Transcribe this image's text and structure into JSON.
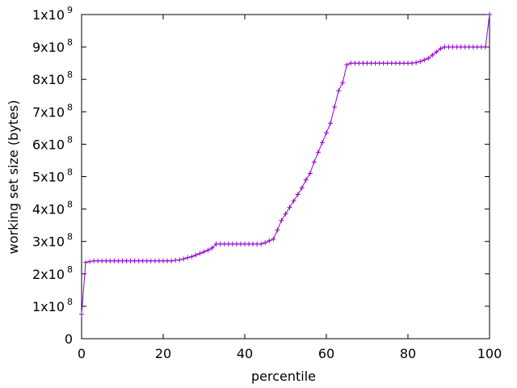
{
  "chart_data": {
    "type": "line",
    "title": "",
    "xlabel": "percentile",
    "ylabel": "working set size (bytes)",
    "xlim": [
      0,
      100
    ],
    "ylim": [
      0,
      1000000000
    ],
    "grid": false,
    "legend": "none",
    "marker": "plus",
    "color": "#9400d3",
    "x_ticks": [
      {
        "value": 0,
        "label": "0"
      },
      {
        "value": 20,
        "label": "20"
      },
      {
        "value": 40,
        "label": "40"
      },
      {
        "value": 60,
        "label": "60"
      },
      {
        "value": 80,
        "label": "80"
      },
      {
        "value": 100,
        "label": "100"
      }
    ],
    "y_ticks": [
      {
        "value": 0,
        "mantissa": "0",
        "exponent": ""
      },
      {
        "value": 100000000,
        "mantissa": "1x10",
        "exponent": "8"
      },
      {
        "value": 200000000,
        "mantissa": "2x10",
        "exponent": "8"
      },
      {
        "value": 300000000,
        "mantissa": "3x10",
        "exponent": "8"
      },
      {
        "value": 400000000,
        "mantissa": "4x10",
        "exponent": "8"
      },
      {
        "value": 500000000,
        "mantissa": "5x10",
        "exponent": "8"
      },
      {
        "value": 600000000,
        "mantissa": "6x10",
        "exponent": "8"
      },
      {
        "value": 700000000,
        "mantissa": "7x10",
        "exponent": "8"
      },
      {
        "value": 800000000,
        "mantissa": "8x10",
        "exponent": "8"
      },
      {
        "value": 900000000,
        "mantissa": "9x10",
        "exponent": "8"
      },
      {
        "value": 1000000000,
        "mantissa": "1x10",
        "exponent": "9"
      }
    ],
    "x": [
      0,
      1,
      2,
      3,
      4,
      5,
      6,
      7,
      8,
      9,
      10,
      11,
      12,
      13,
      14,
      15,
      16,
      17,
      18,
      19,
      20,
      21,
      22,
      23,
      24,
      25,
      26,
      27,
      28,
      29,
      30,
      31,
      32,
      33,
      34,
      35,
      36,
      37,
      38,
      39,
      40,
      41,
      42,
      43,
      44,
      45,
      46,
      47,
      48,
      49,
      50,
      51,
      52,
      53,
      54,
      55,
      56,
      57,
      58,
      59,
      60,
      61,
      62,
      63,
      64,
      65,
      66,
      67,
      68,
      69,
      70,
      71,
      72,
      73,
      74,
      75,
      76,
      77,
      78,
      79,
      80,
      81,
      82,
      83,
      84,
      85,
      86,
      87,
      88,
      89,
      90,
      91,
      92,
      93,
      94,
      95,
      96,
      97,
      98,
      99,
      100
    ],
    "y": [
      75000000,
      235000000,
      238000000,
      240000000,
      240000000,
      240000000,
      240000000,
      240000000,
      240000000,
      240000000,
      240000000,
      240000000,
      240000000,
      240000000,
      240000000,
      240000000,
      240000000,
      240000000,
      240000000,
      240000000,
      240000000,
      240000000,
      240000000,
      242000000,
      243000000,
      246000000,
      250000000,
      253000000,
      258000000,
      263000000,
      268000000,
      273000000,
      280000000,
      292000000,
      292000000,
      292000000,
      292000000,
      292000000,
      292000000,
      292000000,
      292000000,
      292000000,
      292000000,
      292000000,
      292000000,
      296000000,
      302000000,
      307000000,
      335000000,
      365000000,
      385000000,
      405000000,
      425000000,
      445000000,
      465000000,
      490000000,
      510000000,
      545000000,
      575000000,
      605000000,
      635000000,
      665000000,
      715000000,
      765000000,
      790000000,
      845000000,
      850000000,
      850000000,
      850000000,
      850000000,
      850000000,
      850000000,
      850000000,
      850000000,
      850000000,
      850000000,
      850000000,
      850000000,
      850000000,
      850000000,
      850000000,
      850000000,
      852000000,
      855000000,
      860000000,
      865000000,
      875000000,
      885000000,
      895000000,
      900000000,
      900000000,
      900000000,
      900000000,
      900000000,
      900000000,
      900000000,
      900000000,
      900000000,
      900000000,
      900000000,
      1000000000
    ]
  }
}
